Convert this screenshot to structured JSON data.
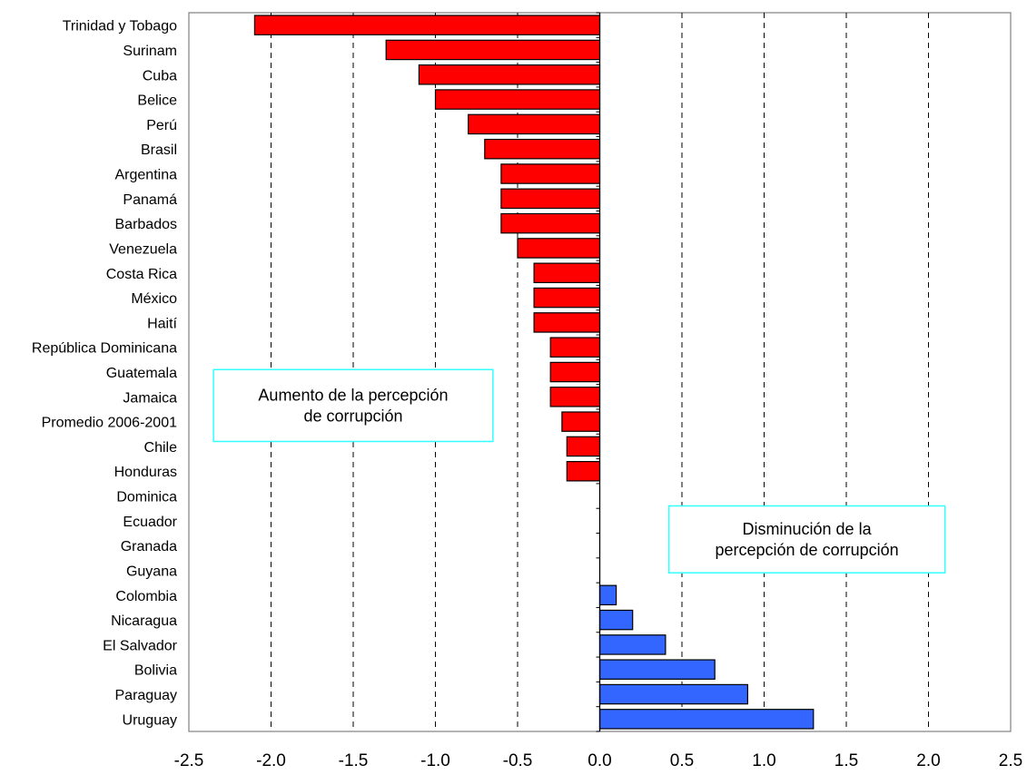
{
  "chart_data": {
    "type": "bar",
    "orientation": "horizontal",
    "categories": [
      "Trinidad y Tobago",
      "Surinam",
      "Cuba",
      "Belice",
      "Perú",
      "Brasil",
      "Argentina",
      "Panamá",
      "Barbados",
      "Venezuela",
      "Costa Rica",
      "México",
      "Haití",
      "República Dominicana",
      "Guatemala",
      "Jamaica",
      "Promedio 2006-2001",
      "Chile",
      "Honduras",
      "Dominica",
      "Ecuador",
      "Granada",
      "Guyana",
      "Colombia",
      "Nicaragua",
      "El Salvador",
      "Bolivia",
      "Paraguay",
      "Uruguay"
    ],
    "values": [
      -2.1,
      -1.3,
      -1.1,
      -1.0,
      -0.8,
      -0.7,
      -0.6,
      -0.6,
      -0.6,
      -0.5,
      -0.4,
      -0.4,
      -0.4,
      -0.3,
      -0.3,
      -0.3,
      -0.23,
      -0.2,
      -0.2,
      0,
      0,
      0,
      0,
      0.1,
      0.2,
      0.4,
      0.7,
      0.9,
      1.3
    ],
    "title": "",
    "xlabel": "",
    "ylabel": "",
    "xlim": [
      -2.5,
      2.5
    ],
    "xticks": [
      -2.5,
      -2.0,
      -1.5,
      -1.0,
      -0.5,
      0.0,
      0.5,
      1.0,
      1.5,
      2.0,
      2.5
    ],
    "xtick_labels": [
      "-2.5",
      "-2.0",
      "-1.5",
      "-1.0",
      "-0.5",
      "0.0",
      "0.5",
      "1.0",
      "1.5",
      "2.0",
      "2.5"
    ],
    "grid": "vertical dashed",
    "legend": "none",
    "colors": {
      "negative": "#ff0000",
      "positive": "#3366ff",
      "bar_border": "#000000",
      "annotation_border": "#33ffff",
      "grid": "#000000",
      "frame": "#808080"
    },
    "annotations": [
      {
        "name": "annotation-increase",
        "lines": [
          "Aumento de la percepción",
          "de corrupción"
        ],
        "x_range": [
          -2.35,
          -0.65
        ],
        "y_range": [
          14.4,
          17.3
        ]
      },
      {
        "name": "annotation-decrease",
        "lines": [
          "Disminución de la",
          "percepción de corrupción"
        ],
        "x_range": [
          0.42,
          2.1
        ],
        "y_range": [
          19.9,
          22.6
        ]
      }
    ]
  }
}
